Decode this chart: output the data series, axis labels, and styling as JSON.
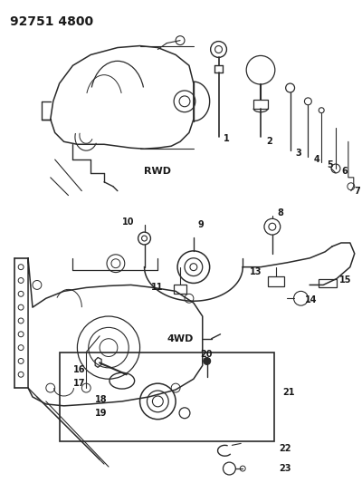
{
  "title": "92751 4800",
  "bg_color": "#ffffff",
  "lc": "#2a2a2a",
  "tc": "#1a1a1a",
  "fig_w": 4.0,
  "fig_h": 5.33,
  "dpi": 100
}
